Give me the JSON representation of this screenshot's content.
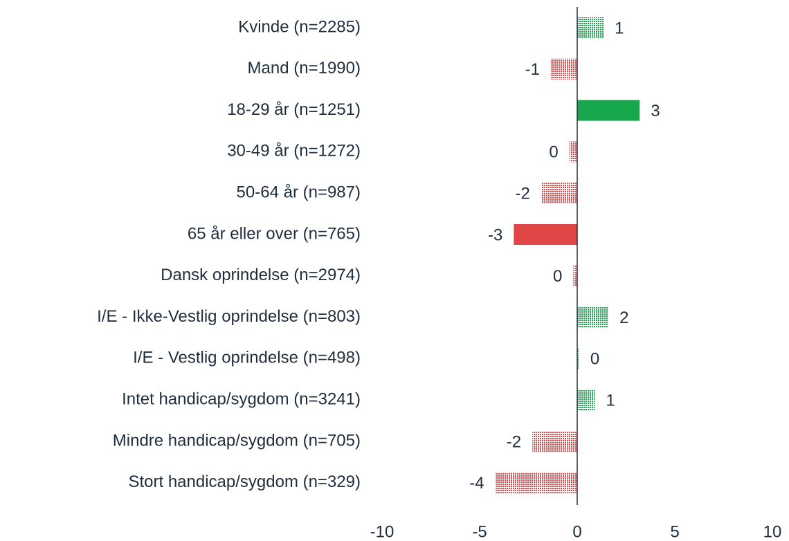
{
  "chart_data": {
    "type": "hbar",
    "categories": [
      "Kvinde (n=2285)",
      "Mand (n=1990)",
      "18-29 år (n=1251)",
      "30-49 år (n=1272)",
      "50-64 år (n=987)",
      "65 år eller over (n=765)",
      "Dansk oprindelse (n=2974)",
      "I/E - Ikke-Vestlig oprindelse (n=803)",
      "I/E - Vestlig oprindelse (n=498)",
      "Intet handicap/sygdom (n=3241)",
      "Mindre handicap/sygdom (n=705)",
      "Stort handicap/sygdom (n=329)"
    ],
    "values": [
      1.35,
      -1.35,
      3.2,
      -0.4,
      -1.85,
      -3.25,
      -0.2,
      1.6,
      0.1,
      0.9,
      -2.3,
      -4.2
    ],
    "value_labels": [
      "1",
      "-1",
      "3",
      "0",
      "-2",
      "-3",
      "0",
      "2",
      "0",
      "1",
      "-2",
      "-4"
    ],
    "styles": [
      "dotted",
      "dotted",
      "solid",
      "dotted",
      "dotted",
      "solid",
      "dotted",
      "dotted",
      "dotted",
      "dotted",
      "dotted",
      "dotted"
    ],
    "positive_color": "#16a84a",
    "negative_color": "#e04646",
    "xlim": [
      -10,
      10
    ],
    "xticks": [
      -10,
      -5,
      0,
      5,
      10
    ]
  }
}
